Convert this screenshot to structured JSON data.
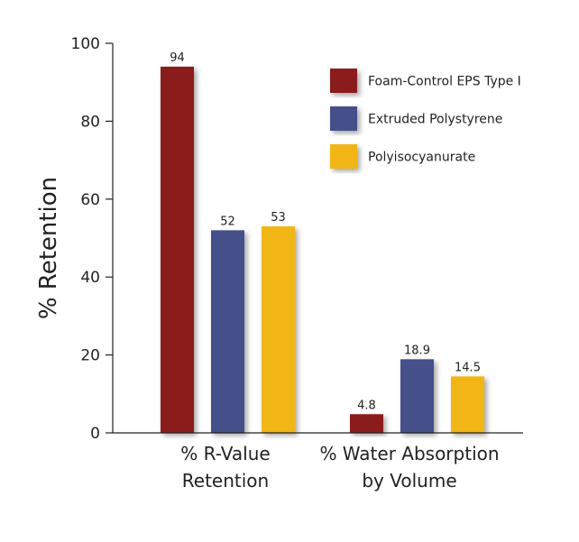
{
  "chart_data": {
    "type": "bar",
    "title": "",
    "xlabel": "",
    "ylabel": "% Retention",
    "ylim": [
      0,
      100
    ],
    "yticks": [
      "0",
      "20",
      "40",
      "60",
      "80",
      "100"
    ],
    "grid": false,
    "legend_position": "top-right",
    "categories": [
      [
        "% R-Value",
        "Retention"
      ],
      [
        "% Water Absorption",
        "by Volume"
      ]
    ],
    "series": [
      {
        "name": "Foam-Control EPS Type I",
        "color": "#8b1a1f",
        "values": [
          94,
          4.8
        ],
        "labels": [
          "94",
          "4.8"
        ]
      },
      {
        "name": "Extruded Polystyrene",
        "color": "#45508a",
        "values": [
          52,
          18.9
        ],
        "labels": [
          "52",
          "18.9"
        ]
      },
      {
        "name": "Polyisocyanurate",
        "color": "#f2b515",
        "values": [
          53,
          14.5
        ],
        "labels": [
          "53",
          "14.5"
        ]
      }
    ]
  }
}
